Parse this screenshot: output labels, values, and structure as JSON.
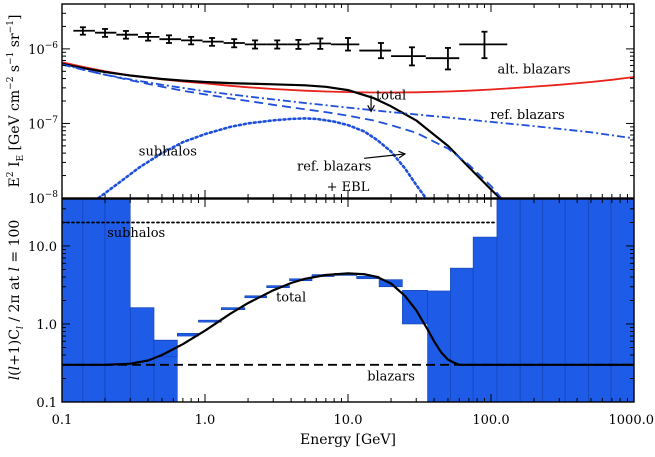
{
  "chart_data": [
    {
      "type": "line",
      "title": "",
      "xlabel": "",
      "ylabel": "E² I_E [GeV cm⁻² s⁻¹ sr⁻¹]",
      "ylabel_parts": {
        "main": "E",
        "sup1": "2",
        "mid": " I",
        "sub": "E",
        "tail": " [GeV cm",
        "sup2": "−2",
        "s": " s",
        "sup3": "−1",
        "sr": " sr",
        "sup4": "−1",
        "close": "]"
      },
      "xscale": "log",
      "yscale": "log",
      "xlim": [
        0.1,
        1000
      ],
      "ylim": [
        1e-08,
        4e-06
      ],
      "grid": false,
      "yticks": [
        {
          "value": 1e-06,
          "base": "10",
          "exp": "−6"
        },
        {
          "value": 1e-07,
          "base": "10",
          "exp": "−7"
        },
        {
          "value": 1e-08,
          "base": "10",
          "exp": "−8"
        }
      ],
      "measured": {
        "name": "",
        "x": [
          0.14,
          0.2,
          0.28,
          0.4,
          0.56,
          0.8,
          1.12,
          1.6,
          2.24,
          3.2,
          4.5,
          6.4,
          10,
          17,
          28,
          50,
          90
        ],
        "y": [
          1.75e-06,
          1.65e-06,
          1.55e-06,
          1.45e-06,
          1.35e-06,
          1.3e-06,
          1.25e-06,
          1.2e-06,
          1.15e-06,
          1.15e-06,
          1.15e-06,
          1.18e-06,
          1.15e-06,
          9.5e-07,
          8e-07,
          7.5e-07,
          1.15e-06
        ],
        "x_lo": [
          0.12,
          0.17,
          0.24,
          0.34,
          0.48,
          0.68,
          0.96,
          1.35,
          1.9,
          2.7,
          3.8,
          5.4,
          7.6,
          12,
          20,
          35,
          60
        ],
        "x_hi": [
          0.17,
          0.24,
          0.34,
          0.48,
          0.68,
          0.96,
          1.35,
          1.9,
          2.7,
          3.8,
          5.4,
          7.6,
          12,
          20,
          35,
          60,
          130
        ],
        "y_lo": [
          1.55e-06,
          1.45e-06,
          1.37e-06,
          1.29e-06,
          1.2e-06,
          1.15e-06,
          1.1e-06,
          1.05e-06,
          1.01e-06,
          1.01e-06,
          1e-06,
          1e-06,
          9.5e-07,
          7.5e-07,
          6e-07,
          5.3e-07,
          7.5e-07
        ],
        "y_hi": [
          1.95e-06,
          1.85e-06,
          1.74e-06,
          1.63e-06,
          1.52e-06,
          1.45e-06,
          1.4e-06,
          1.35e-06,
          1.3e-06,
          1.3e-06,
          1.32e-06,
          1.38e-06,
          1.4e-06,
          1.2e-06,
          1.05e-06,
          1.03e-06,
          1.7e-06
        ]
      },
      "series": [
        {
          "name": "alt. blazars",
          "style": "solid",
          "color": "#e8231c",
          "x": [
            0.1,
            0.15,
            0.2,
            0.3,
            0.5,
            0.7,
            1,
            1.5,
            2,
            3,
            5,
            7,
            10,
            15,
            20,
            30,
            50,
            70,
            100,
            150,
            200,
            300,
            500,
            700,
            1000
          ],
          "y": [
            6.6e-07,
            5.6e-07,
            5e-07,
            4.4e-07,
            3.9e-07,
            3.65e-07,
            3.45e-07,
            3.2e-07,
            3.05e-07,
            2.9e-07,
            2.75e-07,
            2.68e-07,
            2.63e-07,
            2.6e-07,
            2.6e-07,
            2.62e-07,
            2.68e-07,
            2.75e-07,
            2.85e-07,
            3e-07,
            3.12e-07,
            3.3e-07,
            3.6e-07,
            3.85e-07,
            4.2e-07
          ]
        },
        {
          "name": "total",
          "style": "solid",
          "color": "#000000",
          "x": [
            0.1,
            0.15,
            0.2,
            0.3,
            0.5,
            0.7,
            1,
            1.5,
            2,
            3,
            5,
            7,
            10,
            15,
            20,
            30,
            50,
            70,
            100,
            130
          ],
          "y": [
            6.3e-07,
            5.4e-07,
            4.9e-07,
            4.4e-07,
            3.95e-07,
            3.75e-07,
            3.6e-07,
            3.48e-07,
            3.42e-07,
            3.35e-07,
            3.25e-07,
            3.1e-07,
            2.8e-07,
            2.2e-07,
            1.7e-07,
            1.1e-07,
            5e-08,
            2.6e-08,
            1.3e-08,
            8e-09
          ]
        },
        {
          "name": "ref. blazars",
          "style": "dashdot",
          "color": "#1e4fd8",
          "x": [
            0.1,
            0.15,
            0.2,
            0.3,
            0.5,
            0.7,
            1,
            2,
            3,
            5,
            10,
            20,
            50,
            100,
            200,
            500,
            1000
          ],
          "y": [
            6.2e-07,
            5.1e-07,
            4.5e-07,
            3.9e-07,
            3.3e-07,
            3e-07,
            2.7e-07,
            2.3e-07,
            2.1e-07,
            1.88e-07,
            1.63e-07,
            1.42e-07,
            1.2e-07,
            1.05e-07,
            9.2e-08,
            7.6e-08,
            6.3e-08
          ]
        },
        {
          "name": "ref. blazars + EBL",
          "label_lines": [
            "ref. blazars",
            "+ EBL"
          ],
          "style": "dashed",
          "color": "#1e4fd8",
          "x": [
            0.1,
            0.15,
            0.2,
            0.3,
            0.5,
            0.7,
            1,
            2,
            3,
            5,
            7,
            10,
            15,
            20,
            30,
            50,
            70,
            100,
            130
          ],
          "y": [
            6.2e-07,
            5.1e-07,
            4.5e-07,
            3.8e-07,
            3.1e-07,
            2.75e-07,
            2.45e-07,
            2e-07,
            1.78e-07,
            1.55e-07,
            1.42e-07,
            1.27e-07,
            1.1e-07,
            9.5e-08,
            7.5e-08,
            4.6e-08,
            2.8e-08,
            1.45e-08,
            8e-09
          ]
        },
        {
          "name": "subhalos",
          "style": "dotted",
          "color": "#1e4fd8",
          "x": [
            0.18,
            0.25,
            0.35,
            0.5,
            0.7,
            1,
            1.5,
            2,
            3,
            4,
            5,
            6,
            8,
            10,
            13,
            16,
            20,
            25,
            30,
            35
          ],
          "y": [
            1e-08,
            1.6e-08,
            2.6e-08,
            4e-08,
            5.6e-08,
            7.2e-08,
            9e-08,
            1e-07,
            1.1e-07,
            1.15e-07,
            1.17e-07,
            1.15e-07,
            1.06e-07,
            9.5e-08,
            7.8e-08,
            6e-08,
            4.2e-08,
            2.5e-08,
            1.5e-08,
            1e-08
          ]
        }
      ],
      "annotations": [
        {
          "text": "alt. blazars",
          "x": 200,
          "y": 4.7e-07
        },
        {
          "text": "total",
          "x": 20,
          "y": 2.1e-07,
          "arrow_to": [
            14.5,
            1.45e-07
          ]
        },
        {
          "text": "ref. blazars",
          "x": 180,
          "y": 1.15e-07
        },
        {
          "text": "subhalos",
          "x": 0.55,
          "y": 3.7e-08
        },
        {
          "text": "ref. blazars",
          "x": 8,
          "y": 2.35e-08,
          "arrow_to": [
            25,
            3.9e-08
          ]
        },
        {
          "text": "+ EBL",
          "x": 10,
          "y": 1.25e-08
        }
      ]
    },
    {
      "type": "bar",
      "title": "",
      "xlabel": "Energy [GeV]",
      "ylabel": "l(l+1)C_l / 2π at l = 100",
      "ylabel_parts": {
        "a": "l",
        "b": "(",
        "c": "l",
        "d": "+1)C",
        "e": "l",
        "f": " / 2π  at ",
        "g": "l",
        "h": " = 100"
      },
      "xscale": "log",
      "yscale": "log",
      "xlim": [
        0.1,
        1000
      ],
      "ylim": [
        0.1,
        40
      ],
      "grid": false,
      "xticks": [
        {
          "value": 0.1,
          "label": "0.1"
        },
        {
          "value": 1,
          "label": "1.0"
        },
        {
          "value": 10,
          "label": "10.0"
        },
        {
          "value": 100,
          "label": "100.0"
        },
        {
          "value": 1000,
          "label": "1000.0"
        }
      ],
      "yticks": [
        {
          "value": 0.1,
          "label": "0.1"
        },
        {
          "value": 1,
          "label": "1.0"
        },
        {
          "value": 10,
          "label": "10.0"
        }
      ],
      "bins": [
        {
          "lo": 0.1,
          "hi": 0.14,
          "value": 40
        },
        {
          "lo": 0.14,
          "hi": 0.2,
          "value": 40
        },
        {
          "lo": 0.2,
          "hi": 0.3,
          "value": 40
        },
        {
          "lo": 0.3,
          "hi": 0.44,
          "value": 1.62
        },
        {
          "lo": 0.44,
          "hi": 0.64,
          "value": 0.62
        },
        {
          "lo": 36,
          "hi": 52,
          "value": 2.65
        },
        {
          "lo": 52,
          "hi": 75,
          "value": 5.2
        },
        {
          "lo": 75,
          "hi": 110,
          "value": 13
        },
        {
          "lo": 110,
          "hi": 160,
          "value": 40
        },
        {
          "lo": 160,
          "hi": 230,
          "value": 40
        },
        {
          "lo": 230,
          "hi": 330,
          "value": 40
        },
        {
          "lo": 330,
          "hi": 480,
          "value": 40
        },
        {
          "lo": 480,
          "hi": 690,
          "value": 40
        },
        {
          "lo": 690,
          "hi": 1000,
          "value": 40
        }
      ],
      "range_boxes": [
        {
          "lo": 0.44,
          "hi": 0.64,
          "y_lo": 0.38,
          "y_hi": 0.62
        },
        {
          "lo": 0.64,
          "hi": 0.9,
          "y_lo": 0.7,
          "y_hi": 0.76
        },
        {
          "lo": 0.9,
          "hi": 1.3,
          "y_lo": 1.06,
          "y_hi": 1.12
        },
        {
          "lo": 1.3,
          "hi": 1.9,
          "y_lo": 1.55,
          "y_hi": 1.62
        },
        {
          "lo": 1.9,
          "hi": 2.7,
          "y_lo": 2.2,
          "y_hi": 2.3
        },
        {
          "lo": 2.7,
          "hi": 3.9,
          "y_lo": 2.95,
          "y_hi": 3.1
        },
        {
          "lo": 3.9,
          "hi": 5.6,
          "y_lo": 3.6,
          "y_hi": 3.8
        },
        {
          "lo": 5.6,
          "hi": 8,
          "y_lo": 4.1,
          "y_hi": 4.3
        },
        {
          "lo": 8,
          "hi": 11.5,
          "y_lo": 4.25,
          "y_hi": 4.45
        },
        {
          "lo": 11.5,
          "hi": 16.5,
          "y_lo": 3.8,
          "y_hi": 4.1
        },
        {
          "lo": 16.5,
          "hi": 24,
          "y_lo": 3,
          "y_hi": 3.7
        },
        {
          "lo": 24,
          "hi": 36,
          "y_lo": 1,
          "y_hi": 2.7
        }
      ],
      "series": [
        {
          "name": "total",
          "style": "solid",
          "color": "#000000",
          "x": [
            0.1,
            0.2,
            0.3,
            0.4,
            0.5,
            0.7,
            1,
            1.5,
            2,
            3,
            4,
            5,
            7,
            10,
            13,
            16,
            20,
            25,
            30,
            36,
            40,
            45,
            50,
            55,
            60,
            70,
            80,
            100,
            200,
            1000
          ],
          "y": [
            0.3,
            0.3,
            0.31,
            0.34,
            0.4,
            0.55,
            0.82,
            1.35,
            1.85,
            2.7,
            3.35,
            3.8,
            4.25,
            4.45,
            4.35,
            4,
            3.3,
            2.3,
            1.5,
            0.85,
            0.6,
            0.43,
            0.35,
            0.32,
            0.3,
            0.3,
            0.3,
            0.3,
            0.3,
            0.3
          ]
        },
        {
          "name": "blazars",
          "style": "dashed",
          "color": "#000000",
          "x": [
            0.1,
            1000
          ],
          "y": [
            0.3,
            0.3
          ]
        },
        {
          "name": "subhalos",
          "style": "dotted",
          "color": "#000000",
          "x": [
            0.1,
            110
          ],
          "y": [
            20,
            20
          ]
        }
      ],
      "annotations": [
        {
          "text": "subhalos",
          "x": 0.33,
          "y": 13
        },
        {
          "text": "total",
          "x": 4,
          "y": 1.95
        },
        {
          "text": "blazars",
          "x": 20,
          "y": 0.19
        }
      ]
    }
  ]
}
